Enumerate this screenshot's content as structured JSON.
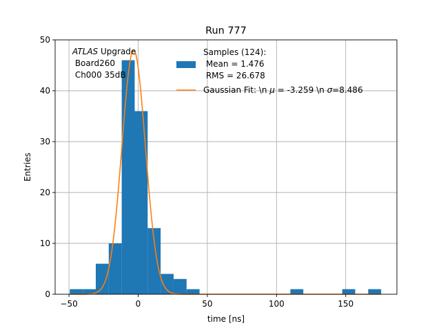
{
  "chart_data": {
    "type": "bar",
    "title": "Run 777",
    "xlabel": "time [ns]",
    "ylabel": "Entries",
    "xlim": [
      -60,
      187
    ],
    "ylim": [
      0,
      50
    ],
    "xticks": [
      -50,
      0,
      50,
      100,
      150
    ],
    "yticks": [
      0,
      10,
      20,
      30,
      40,
      50
    ],
    "grid": true,
    "annotation": {
      "italic": "ATLAS",
      "line1_rest": " Upgrade",
      "line2": " Board260",
      "line3": " Ch000 35dB"
    },
    "legend": {
      "placement": "top-right",
      "hist_label_lines": [
        "Samples (124):",
        " Mean = 1.476",
        " RMS = 26.678"
      ],
      "fit_label_prefix": "Gaussian Fit: \\n ",
      "fit_mu_symbol": "μ",
      "fit_mu_value": " = -3.259 \\n ",
      "fit_sigma_symbol": "σ",
      "fit_sigma_value": "=8.486"
    },
    "histogram": {
      "name": "Samples (124):",
      "color": "#1f77b4",
      "bins": [
        {
          "x0": -49.375,
          "x1": -40.0,
          "count": 1
        },
        {
          "x0": -40.0,
          "x1": -30.625,
          "count": 1
        },
        {
          "x0": -30.625,
          "x1": -21.25,
          "count": 6
        },
        {
          "x0": -21.25,
          "x1": -11.875,
          "count": 10
        },
        {
          "x0": -11.875,
          "x1": -2.5,
          "count": 46
        },
        {
          "x0": -2.5,
          "x1": 6.875,
          "count": 36
        },
        {
          "x0": 6.875,
          "x1": 16.25,
          "count": 13
        },
        {
          "x0": 16.25,
          "x1": 25.625,
          "count": 4
        },
        {
          "x0": 25.625,
          "x1": 35.0,
          "count": 3
        },
        {
          "x0": 35.0,
          "x1": 44.375,
          "count": 1
        },
        {
          "x0": 110.0,
          "x1": 119.375,
          "count": 1
        },
        {
          "x0": 147.5,
          "x1": 156.875,
          "count": 1
        },
        {
          "x0": 166.25,
          "x1": 175.625,
          "count": 1
        }
      ]
    },
    "fit": {
      "name": "Gaussian Fit",
      "color": "#ff7f0e",
      "amplitude": 48,
      "mu": -3.259,
      "sigma": 8.486,
      "x_range": [
        -49.375,
        175.625
      ]
    }
  }
}
